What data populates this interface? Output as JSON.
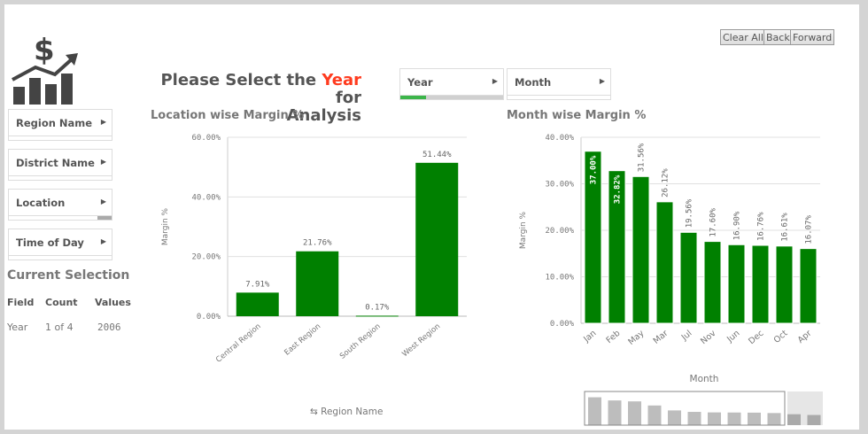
{
  "logo": {
    "icon": "dollar-growth-chart-icon"
  },
  "buttons": {
    "clear_all": "Clear All",
    "back": "Back",
    "forward": "Forward"
  },
  "header": {
    "title_prefix": "Please Select the ",
    "title_highlight": "Year",
    "title_suffix": " for",
    "title_line2": "Analysis",
    "highlight_color": "#ff3b1f"
  },
  "filters": [
    {
      "label": "Region Name"
    },
    {
      "label": "District Name"
    },
    {
      "label": "Location"
    },
    {
      "label": "Time of Day"
    }
  ],
  "top_filters": [
    {
      "label": "Year",
      "selected_fraction": 0.25
    },
    {
      "label": "Month"
    }
  ],
  "current_selection": {
    "title": "Current Selection",
    "headers": [
      "Field",
      "Count",
      "Values"
    ],
    "rows": [
      [
        "Year",
        "1 of 4",
        "2006"
      ]
    ]
  },
  "colors": {
    "bar": "#008000",
    "accent_green": "#3cb54a",
    "mini_bar": "#bdbdbd"
  },
  "chart_data": [
    {
      "type": "bar",
      "title": "Location wise Margin %",
      "ylabel": "Margin %",
      "xlabel": "Region Name",
      "ylim": [
        0,
        60
      ],
      "yticks": [
        "0.00%",
        "20.00%",
        "40.00%",
        "60.00%"
      ],
      "ytick_values": [
        0,
        20,
        40,
        60
      ],
      "grid": true,
      "categories": [
        "Central Region",
        "East Region",
        "South Region",
        "West Region"
      ],
      "values": [
        7.91,
        21.76,
        0.17,
        51.44
      ],
      "labels": [
        "7.91%",
        "21.76%",
        "0.17%",
        "51.44%"
      ]
    },
    {
      "type": "bar",
      "title": "Month wise Margin %",
      "ylabel": "Margin %",
      "xlabel": "Month",
      "ylim": [
        0,
        40
      ],
      "yticks": [
        "0.00%",
        "10.00%",
        "20.00%",
        "30.00%",
        "40.00%"
      ],
      "ytick_values": [
        0,
        10,
        20,
        30,
        40
      ],
      "grid": true,
      "categories": [
        "Jan",
        "Feb",
        "May",
        "Mar",
        "Jul",
        "Nov",
        "Jun",
        "Dec",
        "Oct",
        "Apr"
      ],
      "values": [
        37.0,
        32.82,
        31.56,
        26.12,
        19.56,
        17.6,
        16.9,
        16.76,
        16.61,
        16.07
      ],
      "labels": [
        "37.00%",
        "32.82%",
        "31.56%",
        "26.12%",
        "19.56%",
        "17.60%",
        "16.90%",
        "16.76%",
        "16.61%",
        "16.07%"
      ],
      "minimap_values": [
        37.0,
        32.82,
        31.56,
        26.12,
        19.56,
        17.6,
        16.9,
        16.76,
        16.61,
        16.07,
        14.5,
        13.5
      ]
    }
  ]
}
